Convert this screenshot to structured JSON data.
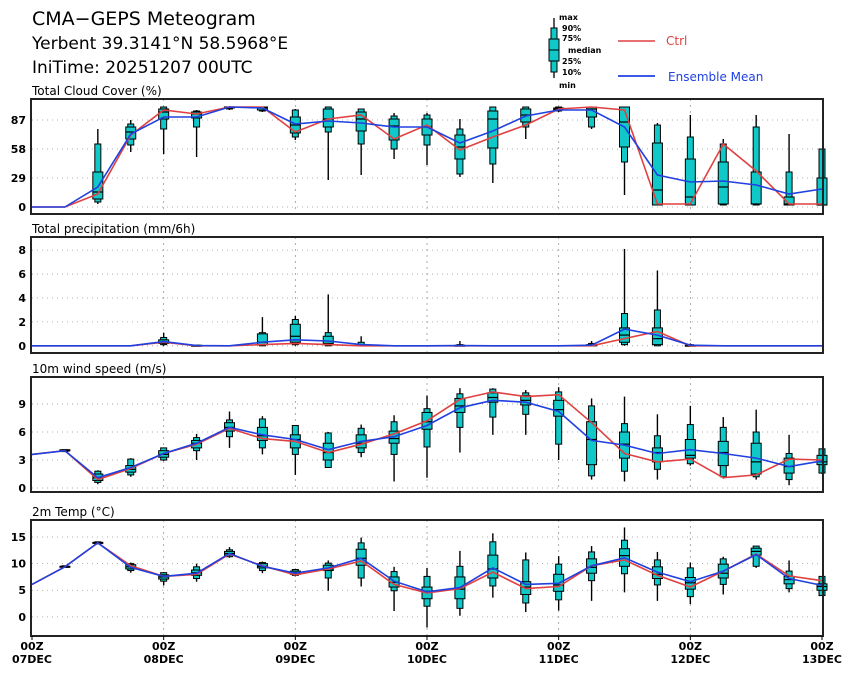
{
  "header": {
    "title": "CMA−GEPS Meteogram",
    "location": "Yerbent 39.3141°N 58.5968°E",
    "init_time": "IniTime: 20251207 00UTC"
  },
  "legend": {
    "box_labels": [
      "max",
      "90%",
      "75%",
      "median",
      "25%",
      "10%",
      "min"
    ],
    "ctrl_label": "Ctrl",
    "mean_label": "Ensemble Mean"
  },
  "colors": {
    "box_fill": "#10c8c8",
    "ctrl": "#e04040",
    "mean": "#2040e0",
    "grid": "#999999"
  },
  "x_ticks": [
    {
      "top": "00Z",
      "bottom": "07DEC"
    },
    {
      "top": "00Z",
      "bottom": "08DEC"
    },
    {
      "top": "00Z",
      "bottom": "09DEC"
    },
    {
      "top": "00Z",
      "bottom": "10DEC"
    },
    {
      "top": "00Z",
      "bottom": "11DEC"
    },
    {
      "top": "00Z",
      "bottom": "12DEC"
    },
    {
      "top": "00Z",
      "bottom": "13DEC"
    }
  ],
  "chart_data": [
    {
      "type": "box-line",
      "title": "Total Cloud Cover (%)",
      "x_step_hours": 6,
      "ylim": [
        -7,
        108
      ],
      "yticks": [
        0,
        29,
        58,
        87
      ],
      "ctrl": [
        0,
        0,
        13,
        72,
        97,
        93,
        100,
        100,
        75,
        88,
        92,
        68,
        82,
        57,
        70,
        82,
        98,
        100,
        97,
        3,
        3,
        63,
        36,
        3,
        3
      ],
      "mean": [
        0,
        0,
        20,
        73,
        90,
        90,
        100,
        99,
        83,
        86,
        84,
        80,
        80,
        64,
        76,
        91,
        97,
        97,
        80,
        32,
        25,
        26,
        22,
        13,
        18
      ],
      "boxes": [
        null,
        null,
        [
          3,
          5,
          8,
          15,
          35,
          63,
          78
        ],
        [
          55,
          62,
          68,
          75,
          80,
          83,
          87
        ],
        [
          53,
          78,
          88,
          95,
          98,
          100,
          100
        ],
        [
          50,
          80,
          89,
          93,
          95,
          96,
          97
        ],
        [
          97,
          98,
          99,
          100,
          100,
          100,
          100
        ],
        [
          95,
          96,
          97,
          99,
          100,
          100,
          100
        ],
        [
          67,
          70,
          74,
          82,
          90,
          97,
          98
        ],
        [
          27,
          75,
          80,
          88,
          98,
          100,
          100
        ],
        [
          32,
          63,
          76,
          88,
          95,
          98,
          98
        ],
        [
          48,
          58,
          67,
          81,
          88,
          91,
          94
        ],
        [
          42,
          62,
          72,
          80,
          88,
          92,
          94
        ],
        [
          30,
          33,
          48,
          60,
          72,
          78,
          88
        ],
        [
          24,
          43,
          59,
          88,
          96,
          100,
          100
        ],
        [
          68,
          80,
          85,
          92,
          98,
          100,
          100
        ],
        [
          95,
          96,
          97,
          98,
          99,
          100,
          100
        ],
        [
          78,
          80,
          90,
          98,
          100,
          100,
          100
        ],
        [
          12,
          45,
          60,
          85,
          100,
          100,
          100
        ],
        [
          2,
          2,
          2,
          17,
          64,
          82,
          84
        ],
        [
          2,
          2,
          2,
          10,
          48,
          70,
          92
        ],
        [
          2,
          2,
          3,
          20,
          45,
          63,
          68
        ],
        [
          2,
          2,
          3,
          3,
          35,
          80,
          92
        ],
        [
          2,
          2,
          2,
          3,
          10,
          35,
          73
        ],
        [
          2,
          2,
          2,
          2,
          29,
          58,
          58
        ]
      ]
    },
    {
      "type": "box-line",
      "title": "Total precipitation (mm/6h)",
      "x_step_hours": 6,
      "ylim": [
        -0.6,
        9.1
      ],
      "yticks": [
        0,
        2,
        4,
        6,
        8
      ],
      "ctrl": [
        0,
        0,
        0,
        0,
        0.3,
        0,
        0,
        0.1,
        0.2,
        0.1,
        0,
        0,
        0,
        0,
        0,
        0,
        0,
        0,
        0.6,
        1.2,
        0,
        0,
        0,
        0,
        0
      ],
      "mean": [
        0,
        0,
        0,
        0,
        0.35,
        0.02,
        0,
        0.3,
        0.5,
        0.4,
        0.1,
        0,
        0,
        0.02,
        0,
        0,
        0,
        0.05,
        1.4,
        0.9,
        0.05,
        0,
        0,
        0,
        0
      ],
      "boxes": [
        null,
        null,
        null,
        null,
        [
          0,
          0.1,
          0.2,
          0.3,
          0.5,
          0.7,
          1.1
        ],
        [
          0,
          0,
          0,
          0,
          0.05,
          0.05,
          0.1
        ],
        null,
        [
          0,
          0,
          0.1,
          0.3,
          1.0,
          1.1,
          2.4
        ],
        [
          0,
          0.1,
          0.3,
          0.8,
          1.8,
          2.2,
          2.5
        ],
        [
          0,
          0,
          0.1,
          0.2,
          0.8,
          1.1,
          4.3
        ],
        [
          0,
          0,
          0,
          0.05,
          0.1,
          0.3,
          0.8
        ],
        null,
        null,
        [
          0,
          0,
          0,
          0,
          0.05,
          0.1,
          0.4
        ],
        null,
        null,
        null,
        [
          0,
          0,
          0,
          0.05,
          0.1,
          0.2,
          0.4
        ],
        [
          0,
          0.1,
          0.3,
          0.9,
          1.5,
          2.7,
          8.1
        ],
        [
          0,
          0,
          0.1,
          0.6,
          1.5,
          3.0,
          6.3
        ],
        [
          0,
          0,
          0,
          0,
          0.05,
          0.1,
          0.2
        ],
        null,
        null,
        null,
        null
      ]
    },
    {
      "type": "box-line",
      "title": "10m wind speed (m/s)",
      "x_step_hours": 6,
      "ylim": [
        -0.43,
        11.9
      ],
      "yticks": [
        0,
        3,
        6,
        9
      ],
      "ctrl": [
        3.6,
        4.0,
        0.9,
        2.1,
        3.7,
        4.7,
        6.4,
        5.3,
        5.0,
        3.8,
        4.7,
        5.8,
        7.2,
        9.5,
        10.3,
        9.8,
        10.0,
        7.0,
        3.7,
        2.8,
        3.1,
        1.1,
        1.4,
        3.1,
        3.0
      ],
      "mean": [
        3.6,
        4.0,
        1.1,
        2.2,
        3.7,
        4.8,
        6.5,
        5.7,
        5.2,
        4.1,
        5.0,
        5.5,
        6.7,
        8.6,
        9.4,
        9.2,
        8.2,
        5.1,
        4.6,
        3.7,
        4.1,
        3.7,
        3.2,
        2.3,
        2.9
      ],
      "boxes": [
        null,
        [
          3.9,
          3.9,
          4.0,
          4.0,
          4.1,
          4.1,
          4.1
        ],
        [
          0.4,
          0.6,
          0.8,
          1.1,
          1.5,
          1.8,
          1.9
        ],
        [
          1.2,
          1.4,
          1.7,
          2.0,
          2.4,
          3.1,
          3.2
        ],
        [
          2.9,
          3.0,
          3.3,
          3.6,
          4.0,
          4.3,
          4.3
        ],
        [
          3.0,
          4.0,
          4.3,
          4.8,
          5.1,
          5.4,
          5.8
        ],
        [
          4.3,
          5.5,
          6.1,
          6.5,
          7.0,
          7.3,
          8.2
        ],
        [
          3.6,
          4.3,
          5.1,
          5.6,
          6.5,
          7.4,
          7.7
        ],
        [
          1.4,
          3.6,
          4.3,
          5.2,
          5.7,
          6.7,
          6.7
        ],
        [
          2.2,
          2.2,
          3.0,
          3.8,
          4.8,
          5.9,
          6.0
        ],
        [
          3.3,
          3.8,
          4.3,
          4.8,
          5.7,
          6.4,
          6.8
        ],
        [
          0.7,
          3.6,
          4.8,
          5.3,
          6.1,
          7.1,
          7.8
        ],
        [
          1.1,
          4.4,
          6.3,
          7.1,
          8.1,
          8.5,
          9.9
        ],
        [
          3.8,
          6.5,
          8.1,
          8.8,
          9.6,
          10.1,
          10.7
        ],
        [
          5.7,
          7.6,
          9.2,
          9.7,
          10.2,
          10.6,
          10.7
        ],
        [
          5.7,
          7.9,
          8.9,
          9.4,
          9.9,
          10.2,
          10.5
        ],
        [
          3.0,
          4.7,
          7.7,
          8.4,
          9.4,
          10.3,
          10.8
        ],
        [
          0.9,
          1.3,
          2.5,
          5.2,
          7.1,
          8.8,
          9.6
        ],
        [
          0.7,
          1.8,
          3.2,
          4.7,
          6.0,
          6.9,
          9.8
        ],
        [
          0.9,
          2.0,
          2.8,
          3.8,
          4.3,
          5.6,
          7.9
        ],
        [
          2.4,
          2.6,
          3.2,
          3.5,
          5.2,
          6.8,
          8.8
        ],
        [
          1.0,
          1.2,
          2.4,
          3.8,
          5.0,
          6.5,
          7.6
        ],
        [
          0.9,
          1.2,
          1.5,
          2.8,
          4.8,
          6.0,
          8.4
        ],
        [
          0.3,
          0.9,
          1.6,
          2.3,
          3.2,
          3.7,
          5.7
        ],
        [
          1.5,
          1.6,
          2.5,
          2.8,
          3.5,
          4.2,
          4.2
        ]
      ]
    },
    {
      "type": "box-line",
      "title": "2m Temp (°C)",
      "x_step_hours": 6,
      "ylim": [
        -3.6,
        18.2
      ],
      "yticks": [
        0,
        5,
        10,
        15
      ],
      "ctrl": [
        6.1,
        9.4,
        13.9,
        9.6,
        7.6,
        8.0,
        11.8,
        9.6,
        7.9,
        9.0,
        10.5,
        6.1,
        4.5,
        5.3,
        8.4,
        5.3,
        5.7,
        9.6,
        10.7,
        7.8,
        5.6,
        8.6,
        11.8,
        7.7,
        6.8
      ],
      "mean": [
        6.1,
        9.4,
        13.9,
        9.3,
        7.6,
        8.2,
        11.9,
        9.5,
        8.2,
        9.2,
        11.0,
        6.7,
        4.7,
        5.5,
        9.2,
        6.1,
        6.3,
        9.6,
        11.1,
        8.4,
        6.6,
        8.6,
        11.7,
        7.2,
        5.9
      ],
      "boxes": [
        null,
        [
          9.3,
          9.3,
          9.35,
          9.4,
          9.5,
          9.6,
          9.6
        ],
        [
          13.7,
          13.7,
          13.8,
          13.9,
          14.0,
          14.1,
          14.1
        ],
        [
          8.3,
          8.7,
          9.0,
          9.4,
          9.8,
          10.0,
          10.2
        ],
        [
          5.9,
          6.7,
          7.1,
          7.5,
          7.9,
          8.3,
          8.4
        ],
        [
          6.6,
          7.2,
          7.8,
          8.3,
          8.8,
          9.4,
          10.0
        ],
        [
          11.1,
          11.3,
          11.6,
          11.9,
          12.3,
          12.6,
          13.1
        ],
        [
          8.2,
          8.7,
          9.2,
          9.5,
          10.0,
          10.2,
          10.4
        ],
        [
          7.6,
          7.8,
          8.0,
          8.3,
          8.6,
          8.9,
          9.0
        ],
        [
          4.9,
          7.3,
          8.7,
          9.0,
          9.7,
          10.1,
          10.6
        ],
        [
          5.7,
          7.3,
          9.7,
          11.0,
          12.7,
          13.9,
          14.9
        ],
        [
          1.1,
          4.9,
          5.6,
          6.5,
          7.5,
          8.5,
          9.4
        ],
        [
          -2.0,
          2.0,
          3.4,
          4.8,
          5.6,
          7.6,
          9.2
        ],
        [
          0.2,
          1.6,
          3.4,
          5.2,
          7.5,
          9.5,
          12.4
        ],
        [
          3.6,
          5.8,
          7.3,
          9.0,
          11.6,
          14.1,
          15.7
        ],
        [
          0.9,
          2.6,
          4.2,
          5.6,
          6.6,
          10.7,
          12.1
        ],
        [
          1.2,
          3.2,
          4.8,
          6.0,
          8.0,
          9.9,
          11.4
        ],
        [
          3.0,
          6.8,
          8.2,
          9.3,
          10.9,
          12.2,
          13.3
        ],
        [
          4.6,
          8.1,
          9.5,
          11.5,
          12.8,
          14.4,
          16.8
        ],
        [
          3.0,
          6.0,
          7.2,
          8.0,
          9.4,
          10.7,
          12.2
        ],
        [
          2.4,
          3.8,
          5.2,
          6.4,
          7.4,
          9.2,
          10.2
        ],
        [
          4.2,
          6.1,
          7.3,
          8.2,
          9.9,
          10.9,
          11.3
        ],
        [
          9.2,
          9.5,
          11.6,
          12.3,
          12.9,
          13.3,
          13.3
        ],
        [
          4.6,
          5.3,
          6.2,
          7.0,
          7.6,
          8.6,
          10.6
        ],
        [
          4.0,
          4.0,
          5.0,
          5.7,
          6.2,
          7.6,
          7.6
        ]
      ]
    }
  ]
}
